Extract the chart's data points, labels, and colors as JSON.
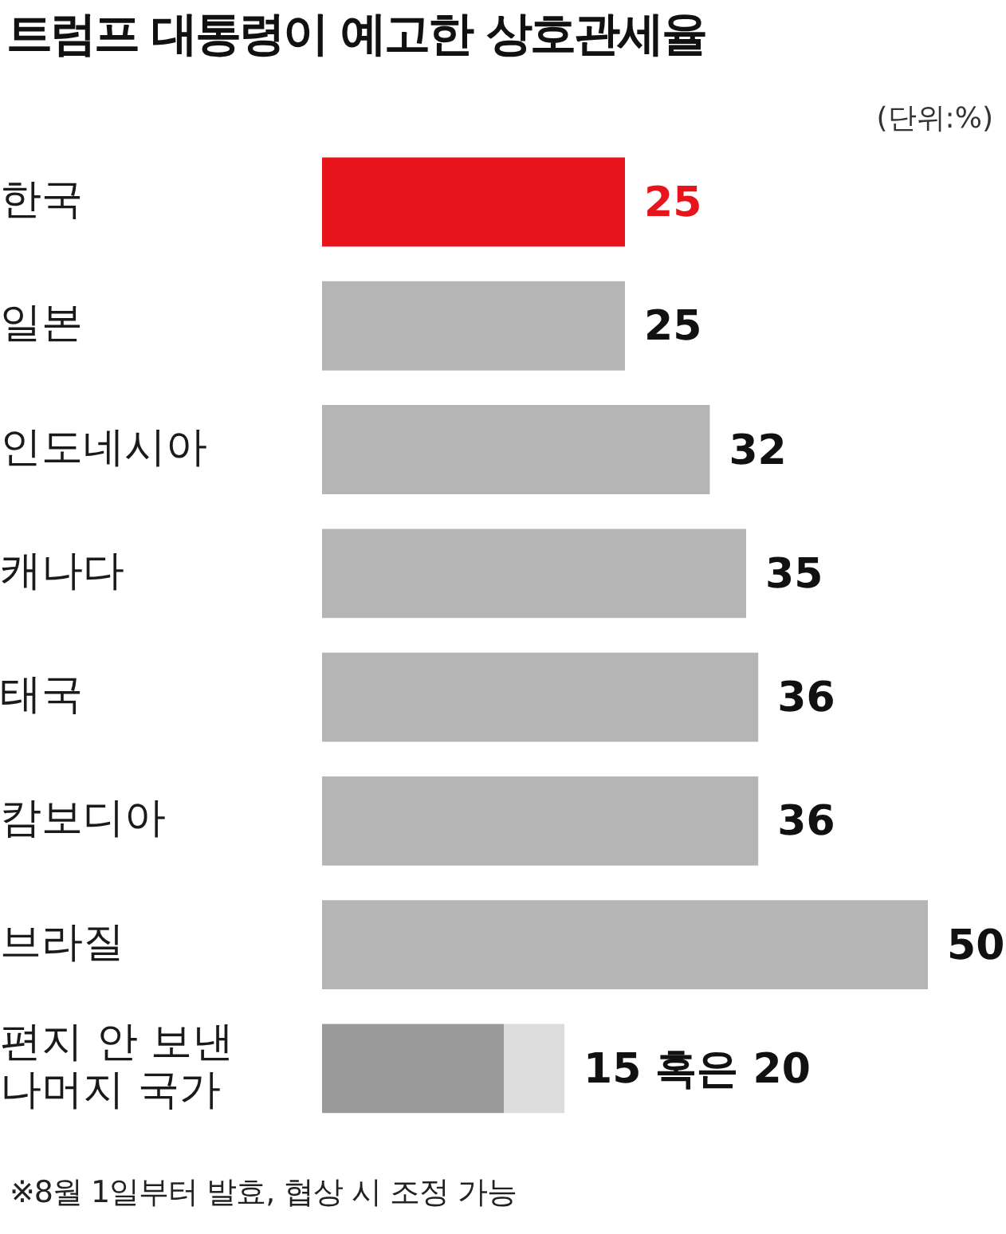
{
  "chart_data": {
    "type": "bar",
    "orientation": "horizontal",
    "stacked": true,
    "title": "트럼프 대통령이 예고한 상호관세율",
    "subtitle": "(단위:%)",
    "categories": [
      "한국",
      "일본",
      "인도네시아",
      "캐나다",
      "태국",
      "캄보디아",
      "브라질",
      "편지 안 보낸 나머지 국가"
    ],
    "series": [
      {
        "colors": [
          "#e8141c",
          "#b5b5b5",
          "#b5b5b5",
          "#b5b5b5",
          "#b5b5b5",
          "#b5b5b5",
          "#b5b5b5",
          "#9a9a9a"
        ],
        "values": [
          25,
          25,
          32,
          35,
          36,
          36,
          50,
          15
        ],
        "value_labels": [
          "25",
          "25",
          "32",
          "35",
          "36",
          "36",
          "50",
          "15 혹은 20"
        ]
      },
      {
        "color": "#dcdcdc",
        "values": [
          null,
          null,
          null,
          null,
          null,
          null,
          null,
          5
        ]
      }
    ],
    "annotations": [
      "※8월 1일부터 발효, 협상 시 조정 가능"
    ],
    "grid": false,
    "legend": false
  }
}
